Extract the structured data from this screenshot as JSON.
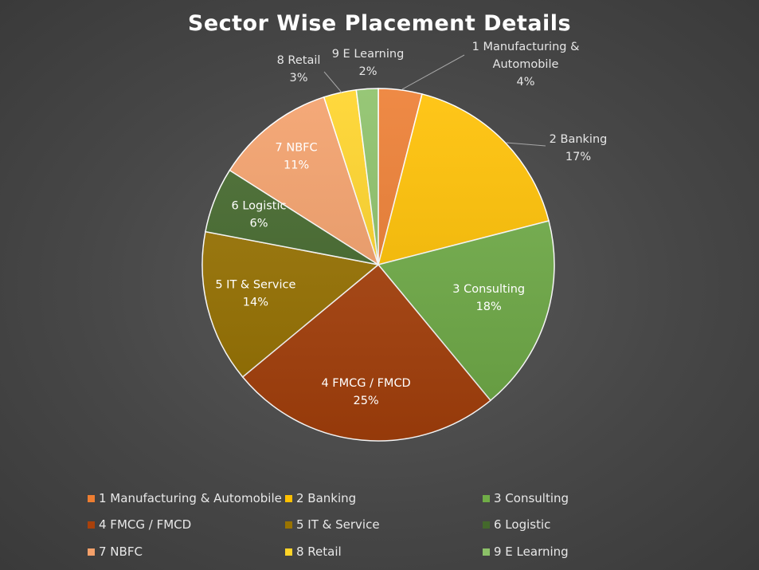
{
  "chart_data": {
    "type": "pie",
    "title": "Sector Wise Placement Details",
    "slices": [
      {
        "name": "1 Manufacturing & Automobile",
        "label_lines": [
          "1 Manufacturing &",
          "Automobile"
        ],
        "value": 4,
        "pct_label": "4%",
        "color": "#ED7D31"
      },
      {
        "name": "2 Banking",
        "label_lines": [
          "2 Banking"
        ],
        "value": 17,
        "pct_label": "17%",
        "color": "#FFC000"
      },
      {
        "name": "3 Consulting",
        "label_lines": [
          "3 Consulting"
        ],
        "value": 18,
        "pct_label": "18%",
        "color": "#70AD47"
      },
      {
        "name": "4 FMCG / FMCD",
        "label_lines": [
          "4 FMCG / FMCD"
        ],
        "value": 25,
        "pct_label": "25%",
        "color": "#A9410B"
      },
      {
        "name": "5 IT & Service",
        "label_lines": [
          "5 IT & Service"
        ],
        "value": 14,
        "pct_label": "14%",
        "color": "#997300"
      },
      {
        "name": "6 Logistic",
        "label_lines": [
          "6 Logistic"
        ],
        "value": 6,
        "pct_label": "6%",
        "color": "#43682B"
      },
      {
        "name": "7 NBFC",
        "label_lines": [
          "7 NBFC"
        ],
        "value": 11,
        "pct_label": "11%",
        "color": "#F4A06A"
      },
      {
        "name": "8 Retail",
        "label_lines": [
          "8 Retail"
        ],
        "value": 3,
        "pct_label": "3%",
        "color": "#FFD428"
      },
      {
        "name": "9 E Learning",
        "label_lines": [
          "9 E Learning"
        ],
        "value": 2,
        "pct_label": "2%",
        "color": "#8CC168"
      }
    ],
    "legend_position": "bottom"
  }
}
